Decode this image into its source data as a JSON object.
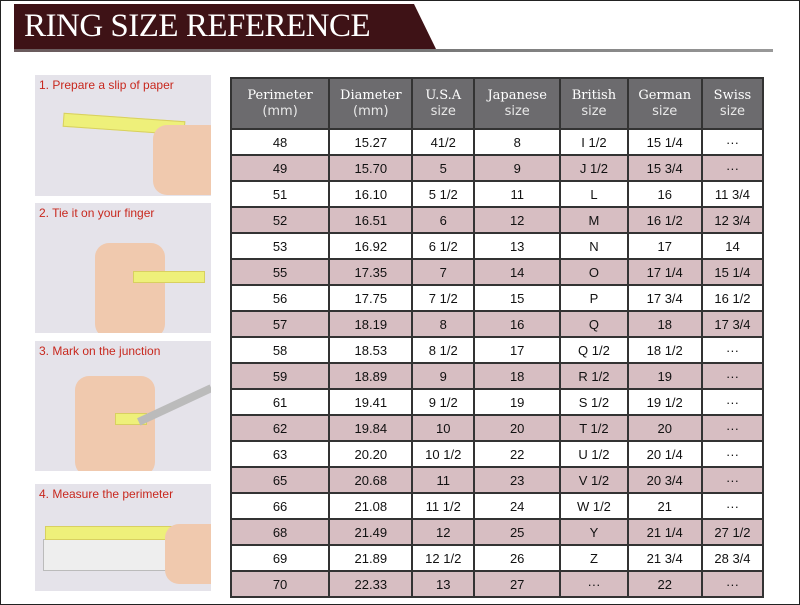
{
  "title": "RING SIZE REFERENCE",
  "steps": [
    "1. Prepare a slip of paper",
    "2. Tie it on your finger",
    "3. Mark on the junction",
    "4. Measure the perimeter"
  ],
  "table": {
    "headers": [
      [
        "Perimeter",
        "(mm)"
      ],
      [
        "Diameter",
        "(mm)"
      ],
      [
        "U.S.A",
        "size"
      ],
      [
        "Japanese",
        "size"
      ],
      [
        "British",
        "size"
      ],
      [
        "German",
        "size"
      ],
      [
        "Swiss",
        "size"
      ]
    ],
    "rows": [
      [
        "48",
        "15.27",
        "41/2",
        "8",
        "I 1/2",
        "15 1/4",
        "···"
      ],
      [
        "49",
        "15.70",
        "5",
        "9",
        "J 1/2",
        "15 3/4",
        "···"
      ],
      [
        "51",
        "16.10",
        "5 1/2",
        "11",
        "L",
        "16",
        "11 3/4"
      ],
      [
        "52",
        "16.51",
        "6",
        "12",
        "M",
        "16 1/2",
        "12 3/4"
      ],
      [
        "53",
        "16.92",
        "6 1/2",
        "13",
        "N",
        "17",
        "14"
      ],
      [
        "55",
        "17.35",
        "7",
        "14",
        "O",
        "17 1/4",
        "15 1/4"
      ],
      [
        "56",
        "17.75",
        "7 1/2",
        "15",
        "P",
        "17 3/4",
        "16 1/2"
      ],
      [
        "57",
        "18.19",
        "8",
        "16",
        "Q",
        "18",
        "17 3/4"
      ],
      [
        "58",
        "18.53",
        "8 1/2",
        "17",
        "Q 1/2",
        "18 1/2",
        "···"
      ],
      [
        "59",
        "18.89",
        "9",
        "18",
        "R 1/2",
        "19",
        "···"
      ],
      [
        "61",
        "19.41",
        "9 1/2",
        "19",
        "S 1/2",
        "19 1/2",
        "···"
      ],
      [
        "62",
        "19.84",
        "10",
        "20",
        "T 1/2",
        "20",
        "···"
      ],
      [
        "63",
        "20.20",
        "10 1/2",
        "22",
        "U 1/2",
        "20 1/4",
        "···"
      ],
      [
        "65",
        "20.68",
        "11",
        "23",
        "V 1/2",
        "20 3/4",
        "···"
      ],
      [
        "66",
        "21.08",
        "11 1/2",
        "24",
        "W 1/2",
        "21",
        "···"
      ],
      [
        "68",
        "21.49",
        "12",
        "25",
        "Y",
        "21 1/4",
        "27 1/2"
      ],
      [
        "69",
        "21.89",
        "12 1/2",
        "26",
        "Z",
        "21 3/4",
        "28 3/4"
      ],
      [
        "70",
        "22.33",
        "13",
        "27",
        "···",
        "22",
        "···"
      ]
    ]
  },
  "colors": {
    "banner": "#3e1216",
    "header": "#6c6b6e",
    "alt_row": "#d7bec2",
    "step_label": "#c8281e"
  }
}
